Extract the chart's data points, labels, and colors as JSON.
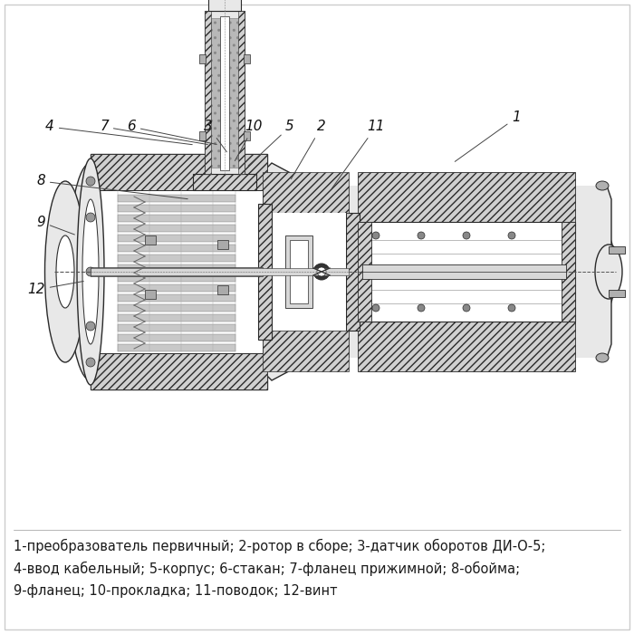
{
  "background_color": "#ffffff",
  "caption_lines": [
    "1-преобразователь первичный; 2-ротор в сборе; 3-датчик оборотов ДИ-О-5;",
    "4-ввод кабельный; 5-корпус; 6-стакан; 7-фланец прижимной; 8-обойма;",
    "9-фланец; 10-прокладка; 11-поводок; 12-винт"
  ],
  "caption_fontsize": 10.5,
  "caption_color": "#1a1a1a",
  "label_fontsize": 11,
  "label_color": "#111111",
  "fig_width": 7.0,
  "fig_height": 7.0,
  "dpi": 100,
  "lc": "#2a2a2a",
  "hatch_fc": "#d0d0d0",
  "body_fc": "#e8e8e8",
  "white": "#ffffff",
  "dark_fc": "#b0b0b0"
}
